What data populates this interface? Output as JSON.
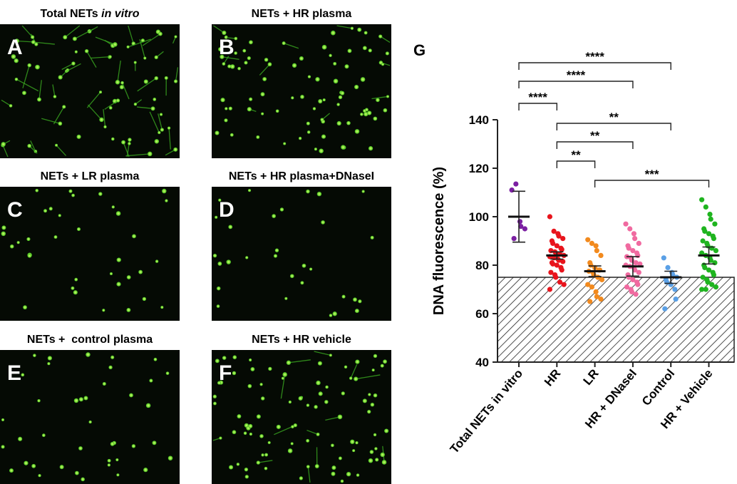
{
  "panels": [
    {
      "letter": "A",
      "title": "Total NETs",
      "title_italic": "in vitro"
    },
    {
      "letter": "B",
      "title": "NETs + HR plasma"
    },
    {
      "letter": "C",
      "title": "NETs + LR plasma"
    },
    {
      "letter": "D",
      "title": "NETs + HR plasma+DNaseI"
    },
    {
      "letter": "E",
      "title": "NETs +  control plasma"
    },
    {
      "letter": "F",
      "title": "NETs + HR vehicle"
    }
  ],
  "chart_data": {
    "type": "dotplot",
    "panel_label": "G",
    "ylabel": "DNA fluorescence (%)",
    "categories": [
      "Total NETs in vitro",
      "HR",
      "LR",
      "HR + DNaseI",
      "Control",
      "HR + Vehicle"
    ],
    "colors": [
      "#7b1fa2",
      "#e8141c",
      "#f28a1e",
      "#f06aa0",
      "#5aa0e6",
      "#1fb41f"
    ],
    "values": [
      [
        111,
        113.5,
        98,
        96,
        95,
        91
      ],
      [
        100,
        94,
        93,
        92,
        91,
        90,
        89,
        88,
        87,
        86.5,
        86,
        85.5,
        85,
        84.5,
        84,
        83.5,
        83,
        82.5,
        82,
        81.5,
        81,
        80.5,
        80,
        79,
        78,
        77,
        76,
        75,
        73,
        72,
        70
      ],
      [
        90.5,
        89,
        88,
        86,
        84,
        81,
        80,
        79,
        78,
        78,
        77.5,
        77,
        76,
        75,
        74,
        72,
        71,
        69,
        67,
        66,
        65
      ],
      [
        97,
        95,
        93,
        91,
        89,
        88,
        87,
        86,
        85,
        84,
        83.5,
        83,
        82,
        81,
        80.5,
        80,
        79.5,
        79,
        78,
        77,
        76,
        75,
        74,
        73,
        72,
        71,
        70,
        69,
        68
      ],
      [
        83,
        79,
        77,
        76,
        75,
        74,
        73,
        72,
        70,
        66,
        62
      ],
      [
        107,
        104,
        101,
        99,
        97,
        95,
        94,
        93,
        92,
        91,
        90,
        89,
        88,
        87,
        86,
        85,
        84,
        83,
        82,
        81,
        80,
        79,
        78,
        77,
        76,
        75,
        74,
        73,
        72,
        71,
        70,
        70
      ]
    ],
    "means": [
      100,
      84,
      77.5,
      79.5,
      75,
      84
    ],
    "errors": [
      10.5,
      1.5,
      2.2,
      4,
      2.5,
      3.5
    ],
    "threshold": 75,
    "ylim": [
      40,
      140
    ],
    "yticks": [
      40,
      60,
      80,
      100,
      120,
      140
    ],
    "comparisons": [
      {
        "from": 0,
        "to": 4,
        "label": "****"
      },
      {
        "from": 0,
        "to": 3,
        "label": "****"
      },
      {
        "from": 0,
        "to": 1,
        "label": "****"
      },
      {
        "from": 1,
        "to": 4,
        "label": "**"
      },
      {
        "from": 1,
        "to": 3,
        "label": "**"
      },
      {
        "from": 1,
        "to": 2,
        "label": "**"
      },
      {
        "from": 2,
        "to": 5,
        "label": "***"
      }
    ]
  }
}
